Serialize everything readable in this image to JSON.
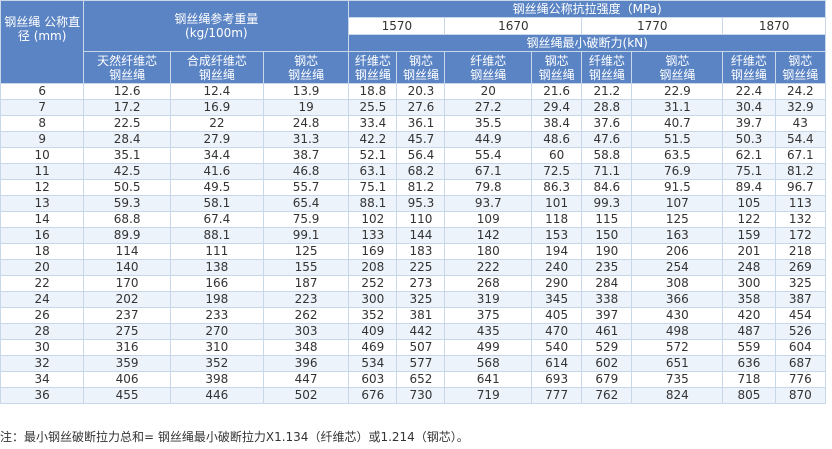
{
  "table": {
    "header": {
      "diameter": "钢丝绳 公称直径\n(mm)",
      "weight_group": "钢丝绳参考重量\n(kg/100m)",
      "strength_group": "钢丝绳公称抗拉强度（MPa)",
      "strengths": [
        "1570",
        "1670",
        "1770",
        "1870"
      ],
      "break_force": "钢丝绳最小破断力(kN)",
      "weight_cols": [
        "天然纤维芯\n钢丝绳",
        "合成纤维芯\n钢丝绳",
        "钢芯\n钢丝绳"
      ],
      "force_cols": [
        "纤维芯\n钢丝绳",
        "钢芯\n钢丝绳",
        "纤维芯\n钢丝绳",
        "钢芯\n钢丝绳",
        "纤维芯\n钢丝绳",
        "钢芯\n钢丝绳",
        "纤维芯\n钢丝绳",
        "钢芯\n钢丝绳"
      ]
    },
    "rows": [
      [
        "6",
        "12.6",
        "12.4",
        "13.9",
        "18.8",
        "20.3",
        "20",
        "21.6",
        "21.2",
        "22.9",
        "22.4",
        "24.2"
      ],
      [
        "7",
        "17.2",
        "16.9",
        "19",
        "25.5",
        "27.6",
        "27.2",
        "29.4",
        "28.8",
        "31.1",
        "30.4",
        "32.9"
      ],
      [
        "8",
        "22.5",
        "22",
        "24.8",
        "33.4",
        "36.1",
        "35.5",
        "38.4",
        "37.6",
        "40.7",
        "39.7",
        "43"
      ],
      [
        "9",
        "28.4",
        "27.9",
        "31.3",
        "42.2",
        "45.7",
        "44.9",
        "48.6",
        "47.6",
        "51.5",
        "50.3",
        "54.4"
      ],
      [
        "10",
        "35.1",
        "34.4",
        "38.7",
        "52.1",
        "56.4",
        "55.4",
        "60",
        "58.8",
        "63.5",
        "62.1",
        "67.1"
      ],
      [
        "11",
        "42.5",
        "41.6",
        "46.8",
        "63.1",
        "68.2",
        "67.1",
        "72.5",
        "71.1",
        "76.9",
        "75.1",
        "81.2"
      ],
      [
        "12",
        "50.5",
        "49.5",
        "55.7",
        "75.1",
        "81.2",
        "79.8",
        "86.3",
        "84.6",
        "91.5",
        "89.4",
        "96.7"
      ],
      [
        "13",
        "59.3",
        "58.1",
        "65.4",
        "88.1",
        "95.3",
        "93.7",
        "101",
        "99.3",
        "107",
        "105",
        "113"
      ],
      [
        "14",
        "68.8",
        "67.4",
        "75.9",
        "102",
        "110",
        "109",
        "118",
        "115",
        "125",
        "122",
        "132"
      ],
      [
        "16",
        "89.9",
        "88.1",
        "99.1",
        "133",
        "144",
        "142",
        "153",
        "150",
        "163",
        "159",
        "172"
      ],
      [
        "18",
        "114",
        "111",
        "125",
        "169",
        "183",
        "180",
        "194",
        "190",
        "206",
        "201",
        "218"
      ],
      [
        "20",
        "140",
        "138",
        "155",
        "208",
        "225",
        "222",
        "240",
        "235",
        "254",
        "248",
        "269"
      ],
      [
        "22",
        "170",
        "166",
        "187",
        "252",
        "273",
        "268",
        "290",
        "284",
        "308",
        "300",
        "325"
      ],
      [
        "24",
        "202",
        "198",
        "223",
        "300",
        "325",
        "319",
        "345",
        "338",
        "366",
        "358",
        "387"
      ],
      [
        "26",
        "237",
        "233",
        "262",
        "352",
        "381",
        "375",
        "405",
        "397",
        "430",
        "420",
        "454"
      ],
      [
        "28",
        "275",
        "270",
        "303",
        "409",
        "442",
        "435",
        "470",
        "461",
        "498",
        "487",
        "526"
      ],
      [
        "30",
        "316",
        "310",
        "348",
        "469",
        "507",
        "499",
        "540",
        "529",
        "572",
        "559",
        "604"
      ],
      [
        "32",
        "359",
        "352",
        "396",
        "534",
        "577",
        "568",
        "614",
        "602",
        "651",
        "636",
        "687"
      ],
      [
        "34",
        "406",
        "398",
        "447",
        "603",
        "652",
        "641",
        "693",
        "679",
        "735",
        "718",
        "776"
      ],
      [
        "36",
        "455",
        "446",
        "502",
        "676",
        "730",
        "719",
        "777",
        "762",
        "824",
        "805",
        "870"
      ]
    ]
  },
  "note": "注：最小钢丝破断拉力总和= 钢丝绳最小破断拉力X1.134（纤维芯）或1.214（钢芯）。",
  "colors": {
    "header_bg": "#5b84c4",
    "header_text": "#ffffff",
    "row_alt_bg": "#edf3fb",
    "border": "#c9d7ea"
  }
}
